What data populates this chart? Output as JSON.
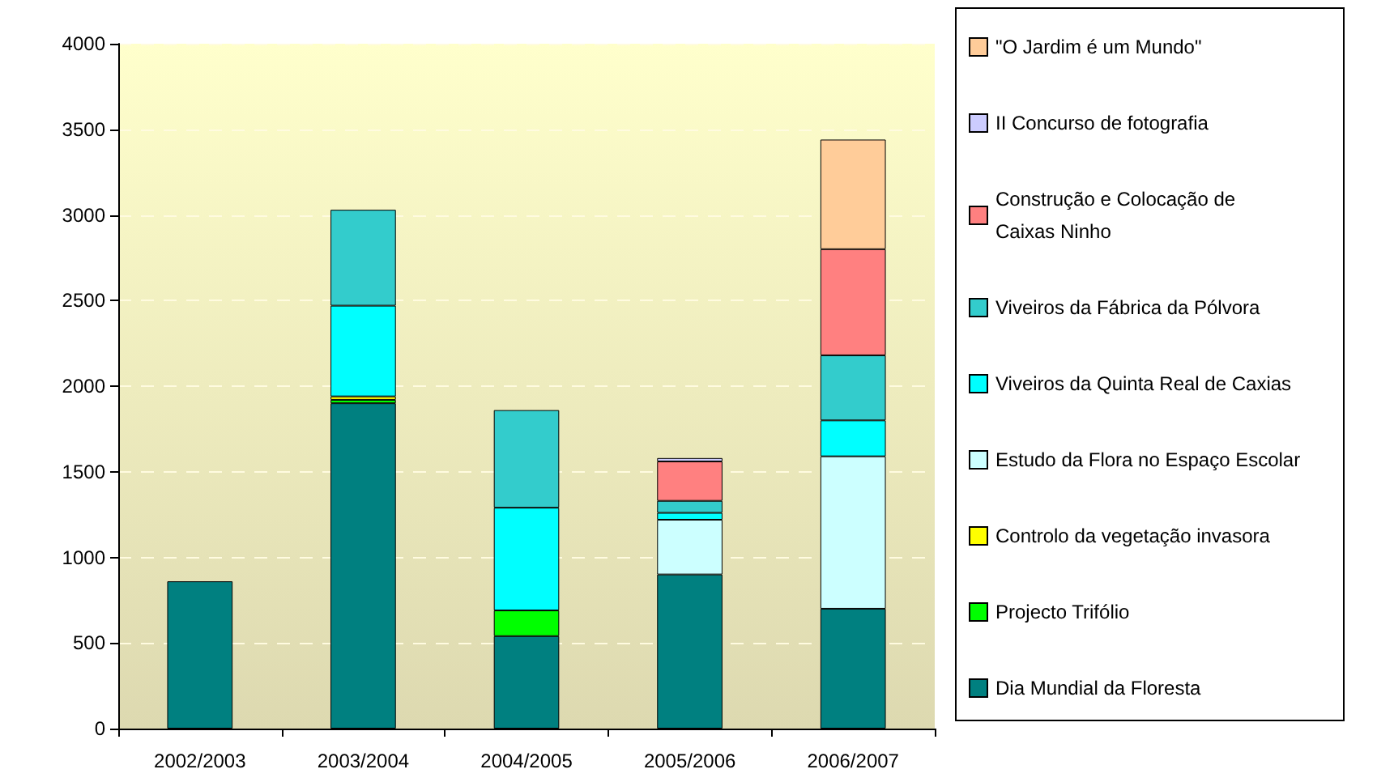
{
  "chart_data": {
    "type": "bar",
    "stacked": true,
    "categories": [
      "2002/2003",
      "2003/2004",
      "2004/2005",
      "2005/2006",
      "2006/2007"
    ],
    "series": [
      {
        "name": "Dia Mundial da Floresta",
        "color": "#008080",
        "values": [
          860,
          1900,
          540,
          900,
          700
        ]
      },
      {
        "name": "Projecto Trifólio",
        "color": "#00ff00",
        "values": [
          null,
          20,
          150,
          null,
          null
        ]
      },
      {
        "name": "Controlo da vegetação invasora",
        "color": "#ffff00",
        "values": [
          null,
          20,
          null,
          null,
          null
        ]
      },
      {
        "name": "Estudo da Flora no Espaço Escolar",
        "color": "#ccffff",
        "values": [
          null,
          null,
          null,
          320,
          890
        ]
      },
      {
        "name": "Viveiros da Quinta Real de Caxias",
        "color": "#00ffff",
        "values": [
          null,
          530,
          600,
          40,
          210
        ]
      },
      {
        "name": "Viveiros da Fábrica da Pólvora",
        "color": "#33cccc",
        "values": [
          null,
          560,
          570,
          70,
          380
        ]
      },
      {
        "name": "Construção e Colocação de Caixas Ninho",
        "color": "#ff8080",
        "values": [
          null,
          null,
          null,
          230,
          620
        ]
      },
      {
        "name": "II Concurso de fotografia",
        "color": "#ccccff",
        "values": [
          null,
          null,
          null,
          20,
          null
        ]
      },
      {
        "name": "\"O Jardim é um Mundo\"",
        "color": "#ffcc99",
        "values": [
          null,
          null,
          null,
          null,
          640
        ]
      }
    ],
    "ylim": [
      0,
      4000
    ],
    "yticks": [
      0,
      500,
      1000,
      1500,
      2000,
      2500,
      3000,
      3500,
      4000
    ],
    "grid": "y",
    "legend": "right"
  }
}
